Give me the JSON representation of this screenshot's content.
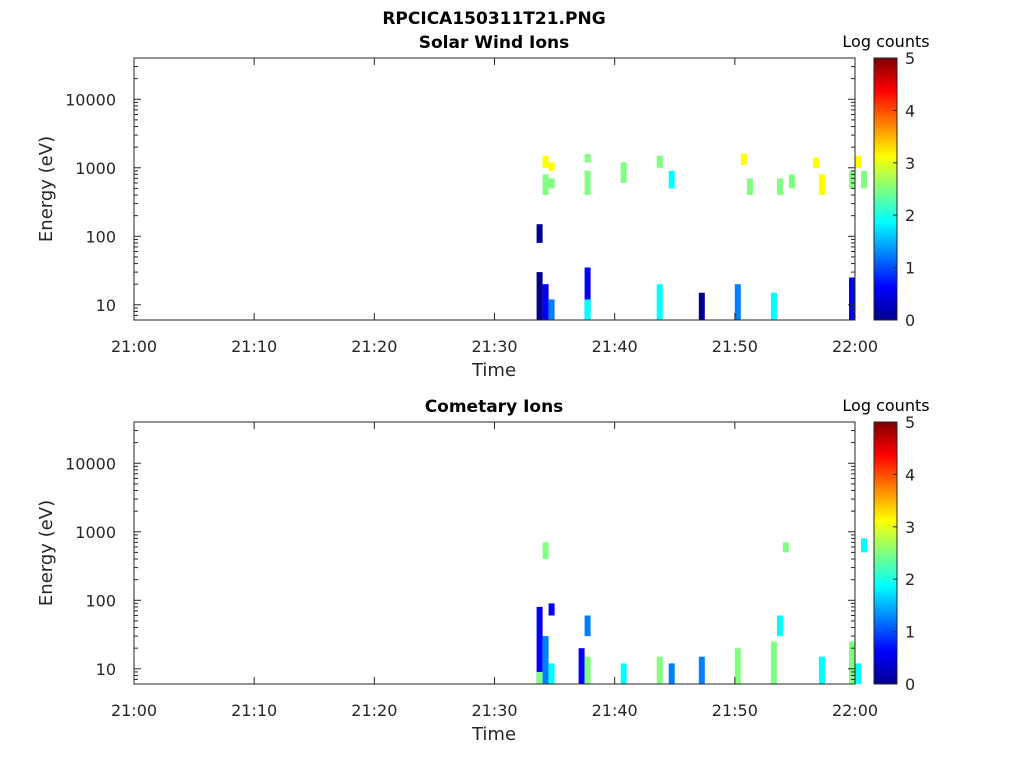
{
  "figure_title": "RPCICA150311T21.PNG",
  "colorscale": [
    "#00008f",
    "#0000ff",
    "#0080ff",
    "#00ffff",
    "#80ff80",
    "#ffff00",
    "#ff8000",
    "#ff0000",
    "#800000"
  ],
  "chart_data": [
    {
      "type": "heatmap",
      "title": "Solar Wind Ions",
      "xlabel": "Time",
      "ylabel": "Energy (eV)",
      "yscale": "log",
      "xlim": [
        "21:00",
        "22:00"
      ],
      "x_ticks": [
        "21:00",
        "21:10",
        "21:20",
        "21:30",
        "21:40",
        "21:50",
        "22:00"
      ],
      "ylim": [
        6,
        40000
      ],
      "y_ticks": [
        10,
        100,
        1000,
        10000
      ],
      "y_tick_labels": [
        "10",
        "100",
        "1000",
        "10000"
      ],
      "colorbar": {
        "title": "Log counts",
        "range": [
          0,
          5
        ],
        "ticks": [
          "0",
          "1",
          "2",
          "3",
          "4",
          "5"
        ]
      },
      "cells": [
        {
          "t": "21:33:30",
          "e_min": 6,
          "e_max": 30,
          "log_counts": 0.3
        },
        {
          "t": "21:34:00",
          "e_min": 6,
          "e_max": 20,
          "log_counts": 0.8
        },
        {
          "t": "21:34:00",
          "e_min": 400,
          "e_max": 800,
          "log_counts": 2.2
        },
        {
          "t": "21:34:00",
          "e_min": 1000,
          "e_max": 1500,
          "log_counts": 3.0
        },
        {
          "t": "21:34:30",
          "e_min": 6,
          "e_max": 12,
          "log_counts": 1.2
        },
        {
          "t": "21:34:30",
          "e_min": 500,
          "e_max": 700,
          "log_counts": 2.5
        },
        {
          "t": "21:34:30",
          "e_min": 900,
          "e_max": 1200,
          "log_counts": 3.3
        },
        {
          "t": "21:33:30",
          "e_min": 80,
          "e_max": 150,
          "log_counts": 0.3
        },
        {
          "t": "21:37:30",
          "e_min": 6,
          "e_max": 35,
          "log_counts": 0.5
        },
        {
          "t": "21:37:30",
          "e_min": 6,
          "e_max": 12,
          "log_counts": 2.0
        },
        {
          "t": "21:37:30",
          "e_min": 400,
          "e_max": 900,
          "log_counts": 2.5
        },
        {
          "t": "21:37:30",
          "e_min": 1200,
          "e_max": 1600,
          "log_counts": 2.8
        },
        {
          "t": "21:40:30",
          "e_min": 600,
          "e_max": 1200,
          "log_counts": 2.5
        },
        {
          "t": "21:43:30",
          "e_min": 6,
          "e_max": 20,
          "log_counts": 1.6
        },
        {
          "t": "21:43:30",
          "e_min": 1000,
          "e_max": 1500,
          "log_counts": 2.3
        },
        {
          "t": "21:44:30",
          "e_min": 500,
          "e_max": 900,
          "log_counts": 2.0
        },
        {
          "t": "21:47:00",
          "e_min": 6,
          "e_max": 15,
          "log_counts": 0.3
        },
        {
          "t": "21:50:00",
          "e_min": 6,
          "e_max": 20,
          "log_counts": 1.0
        },
        {
          "t": "21:50:30",
          "e_min": 1100,
          "e_max": 1600,
          "log_counts": 3.2
        },
        {
          "t": "21:51:00",
          "e_min": 400,
          "e_max": 700,
          "log_counts": 2.4
        },
        {
          "t": "21:53:00",
          "e_min": 6,
          "e_max": 15,
          "log_counts": 1.7
        },
        {
          "t": "21:53:30",
          "e_min": 400,
          "e_max": 700,
          "log_counts": 2.6
        },
        {
          "t": "21:54:30",
          "e_min": 500,
          "e_max": 800,
          "log_counts": 2.6
        },
        {
          "t": "21:56:30",
          "e_min": 1000,
          "e_max": 1400,
          "log_counts": 2.9
        },
        {
          "t": "21:57:00",
          "e_min": 400,
          "e_max": 800,
          "log_counts": 3.0
        },
        {
          "t": "21:59:30",
          "e_min": 6,
          "e_max": 25,
          "log_counts": 0.8
        },
        {
          "t": "21:59:30",
          "e_min": 500,
          "e_max": 900,
          "log_counts": 2.4
        },
        {
          "t": "22:00:00",
          "e_min": 1000,
          "e_max": 1500,
          "log_counts": 3.4
        },
        {
          "t": "22:00:30",
          "e_min": 500,
          "e_max": 900,
          "log_counts": 2.7
        }
      ]
    },
    {
      "type": "heatmap",
      "title": "Cometary Ions",
      "xlabel": "Time",
      "ylabel": "Energy (eV)",
      "yscale": "log",
      "xlim": [
        "21:00",
        "22:00"
      ],
      "x_ticks": [
        "21:00",
        "21:10",
        "21:20",
        "21:30",
        "21:40",
        "21:50",
        "22:00"
      ],
      "ylim": [
        6,
        40000
      ],
      "y_ticks": [
        10,
        100,
        1000,
        10000
      ],
      "y_tick_labels": [
        "10",
        "100",
        "1000",
        "10000"
      ],
      "colorbar": {
        "title": "Log counts",
        "range": [
          0,
          5
        ],
        "ticks": [
          "0",
          "1",
          "2",
          "3",
          "4",
          "5"
        ]
      },
      "cells": [
        {
          "t": "21:33:30",
          "e_min": 6,
          "e_max": 80,
          "log_counts": 0.5
        },
        {
          "t": "21:33:30",
          "e_min": 6,
          "e_max": 9,
          "log_counts": 2.3
        },
        {
          "t": "21:34:00",
          "e_min": 6,
          "e_max": 30,
          "log_counts": 1.5
        },
        {
          "t": "21:34:00",
          "e_min": 400,
          "e_max": 700,
          "log_counts": 2.5
        },
        {
          "t": "21:34:30",
          "e_min": 6,
          "e_max": 12,
          "log_counts": 2.0
        },
        {
          "t": "21:34:30",
          "e_min": 60,
          "e_max": 90,
          "log_counts": 0.6
        },
        {
          "t": "21:37:00",
          "e_min": 6,
          "e_max": 20,
          "log_counts": 0.8
        },
        {
          "t": "21:37:30",
          "e_min": 6,
          "e_max": 15,
          "log_counts": 2.2
        },
        {
          "t": "21:37:30",
          "e_min": 30,
          "e_max": 60,
          "log_counts": 1.5
        },
        {
          "t": "21:40:30",
          "e_min": 6,
          "e_max": 12,
          "log_counts": 2.0
        },
        {
          "t": "21:43:30",
          "e_min": 6,
          "e_max": 15,
          "log_counts": 2.6
        },
        {
          "t": "21:44:30",
          "e_min": 6,
          "e_max": 12,
          "log_counts": 1.5
        },
        {
          "t": "21:47:00",
          "e_min": 6,
          "e_max": 15,
          "log_counts": 1.2
        },
        {
          "t": "21:50:00",
          "e_min": 6,
          "e_max": 20,
          "log_counts": 2.2
        },
        {
          "t": "21:53:00",
          "e_min": 6,
          "e_max": 25,
          "log_counts": 2.4
        },
        {
          "t": "21:53:30",
          "e_min": 30,
          "e_max": 60,
          "log_counts": 1.8
        },
        {
          "t": "21:54:00",
          "e_min": 500,
          "e_max": 700,
          "log_counts": 2.4
        },
        {
          "t": "21:57:00",
          "e_min": 6,
          "e_max": 15,
          "log_counts": 1.8
        },
        {
          "t": "21:59:30",
          "e_min": 6,
          "e_max": 25,
          "log_counts": 2.5
        },
        {
          "t": "22:00:00",
          "e_min": 6,
          "e_max": 12,
          "log_counts": 2.0
        },
        {
          "t": "22:00:30",
          "e_min": 500,
          "e_max": 800,
          "log_counts": 1.8
        }
      ]
    }
  ]
}
